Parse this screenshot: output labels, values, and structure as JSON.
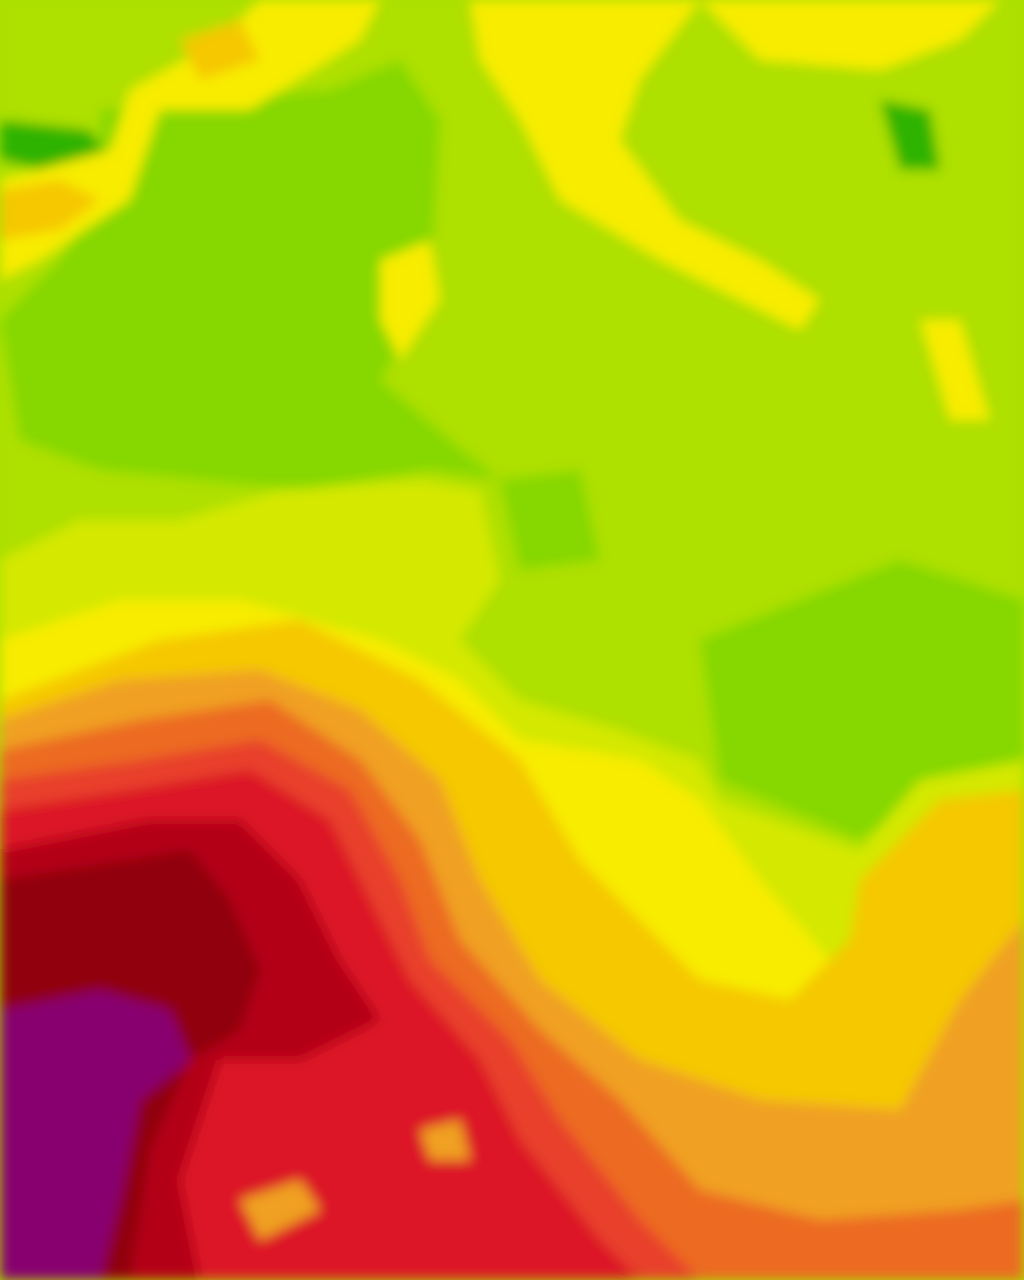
{
  "map": {
    "type": "temperature-contour-overlay",
    "palette": {
      "dark_green": "#2db400",
      "green": "#86d800",
      "lime": "#aee000",
      "yellow_green": "#d4e800",
      "yellow": "#f8ec00",
      "gold": "#f5c800",
      "orange": "#f0a020",
      "dark_orange": "#ec6a20",
      "red_orange": "#e8402a",
      "red": "#dc1428",
      "dark_red": "#b40014",
      "maroon": "#900010",
      "purple": "#880070"
    }
  }
}
